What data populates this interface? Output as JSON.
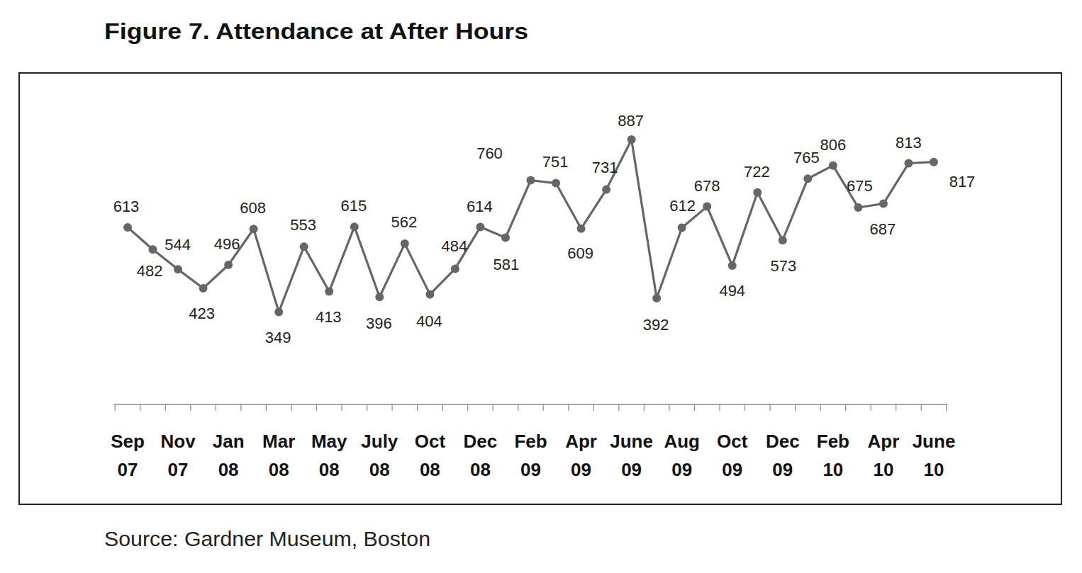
{
  "chart_data": {
    "type": "line",
    "title": "Figure 7. Attendance at After Hours",
    "source": "Source: Gardner Museum, Boston",
    "categories": [
      "Sep 07",
      null,
      "Nov 07",
      null,
      "Jan 08",
      null,
      "Mar 08",
      null,
      "May 08",
      null,
      "July 08",
      null,
      "Oct 08",
      null,
      "Dec 08",
      null,
      "Feb 09",
      null,
      "Apr 09",
      null,
      "June 09",
      null,
      "Aug 09",
      null,
      "Oct 09",
      null,
      "Dec 09",
      null,
      "Feb 10",
      null,
      "Apr 10",
      null,
      "June 10"
    ],
    "values": [
      613,
      544,
      482,
      423,
      496,
      608,
      349,
      553,
      413,
      615,
      396,
      562,
      404,
      484,
      614,
      581,
      760,
      751,
      609,
      731,
      887,
      392,
      612,
      678,
      494,
      722,
      573,
      765,
      806,
      675,
      687,
      813,
      817
    ],
    "color": "#666666",
    "marker": "circle",
    "line_style": "solid",
    "data_labels": true,
    "tick_labels": "x",
    "grid": false,
    "ylim": [
      300,
      950
    ]
  }
}
